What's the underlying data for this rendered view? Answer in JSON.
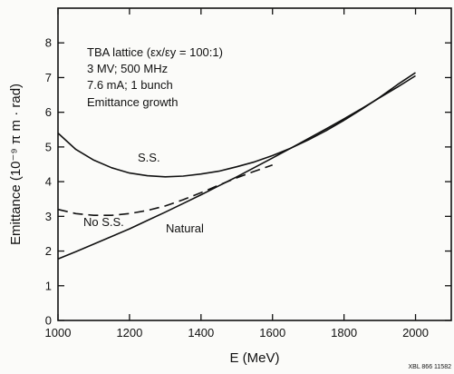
{
  "chart_data": {
    "type": "line",
    "xlabel": "E (MeV)",
    "ylabel": "Emittance (10⁻⁹ π m · rad)",
    "xlim": [
      1000,
      2100
    ],
    "ylim": [
      0,
      9
    ],
    "x_ticks": [
      1000,
      1200,
      1400,
      1600,
      1800,
      2000
    ],
    "y_ticks": [
      0,
      1,
      2,
      3,
      4,
      5,
      6,
      7,
      8
    ],
    "grid": false,
    "info_lines": [
      "TBA lattice  (εx/εy = 100:1)",
      "3 MV; 500 MHz",
      "7.6 mA; 1 bunch",
      "Emittance growth"
    ],
    "series": [
      {
        "name": "S.S.",
        "style": "solid",
        "x": [
          1000,
          1050,
          1100,
          1150,
          1200,
          1250,
          1300,
          1350,
          1400,
          1450,
          1500,
          1550,
          1600,
          1650,
          1700,
          1750,
          1800,
          1850,
          1900,
          1950,
          2000
        ],
        "y": [
          5.4,
          4.93,
          4.62,
          4.4,
          4.25,
          4.17,
          4.14,
          4.16,
          4.22,
          4.3,
          4.43,
          4.57,
          4.75,
          4.96,
          5.2,
          5.47,
          5.77,
          6.09,
          6.43,
          6.8,
          7.14
        ]
      },
      {
        "name": "No S.S.",
        "style": "dashed",
        "x": [
          1000,
          1050,
          1100,
          1150,
          1200,
          1250,
          1300,
          1350,
          1400,
          1450,
          1500,
          1550,
          1600
        ],
        "y": [
          3.2,
          3.08,
          3.03,
          3.03,
          3.08,
          3.17,
          3.3,
          3.48,
          3.68,
          3.9,
          4.11,
          4.3,
          4.48
        ]
      },
      {
        "name": "Natural",
        "style": "solid",
        "x": [
          1000,
          1050,
          1100,
          1150,
          1200,
          1250,
          1300,
          1350,
          1400,
          1450,
          1500,
          1550,
          1600,
          1650,
          1700,
          1750,
          1800,
          1850,
          1900,
          1950,
          2000
        ],
        "y": [
          1.77,
          1.98,
          2.2,
          2.42,
          2.64,
          2.88,
          3.12,
          3.37,
          3.62,
          3.88,
          4.14,
          4.41,
          4.68,
          4.96,
          5.24,
          5.52,
          5.81,
          6.11,
          6.42,
          6.73,
          7.05
        ]
      }
    ],
    "curve_labels": [
      "S.S.",
      "No S.S.",
      "Natural"
    ],
    "footer_code": "XBL 866 11582"
  }
}
